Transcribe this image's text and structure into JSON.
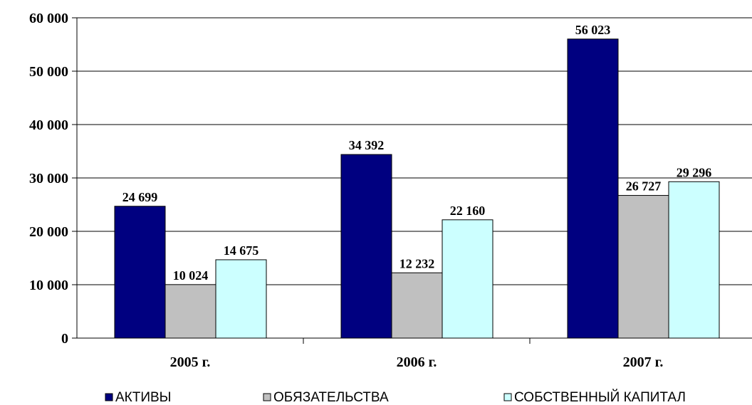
{
  "chart_data": {
    "type": "bar",
    "categories": [
      "2005 г.",
      "2006 г.",
      "2007 г."
    ],
    "series": [
      {
        "name": "АКТИВЫ",
        "values": [
          24699,
          34392,
          56023
        ],
        "labels": [
          "24 699",
          "34 392",
          "56 023"
        ],
        "color": "#000080"
      },
      {
        "name": "ОБЯЗАТЕЛЬСТВА",
        "values": [
          10024,
          12232,
          26727
        ],
        "labels": [
          "10 024",
          "12 232",
          "26 727"
        ],
        "color": "#C0C0C0"
      },
      {
        "name": "СОБСТВЕННЫЙ КАПИТАЛ",
        "values": [
          14675,
          22160,
          29296
        ],
        "labels": [
          "14 675",
          "22 160",
          "29 296"
        ],
        "color": "#CCFFFF"
      }
    ],
    "yticks": [
      {
        "value": 0,
        "label": "0"
      },
      {
        "value": 10000,
        "label": "10 000"
      },
      {
        "value": 20000,
        "label": "20 000"
      },
      {
        "value": 30000,
        "label": "30 000"
      },
      {
        "value": 40000,
        "label": "40 000"
      },
      {
        "value": 50000,
        "label": "50 000"
      },
      {
        "value": 60000,
        "label": "60 000"
      }
    ],
    "ylim": [
      0,
      60000
    ],
    "grid": true,
    "legend_position": "bottom",
    "title": "",
    "xlabel": "",
    "ylabel": ""
  }
}
